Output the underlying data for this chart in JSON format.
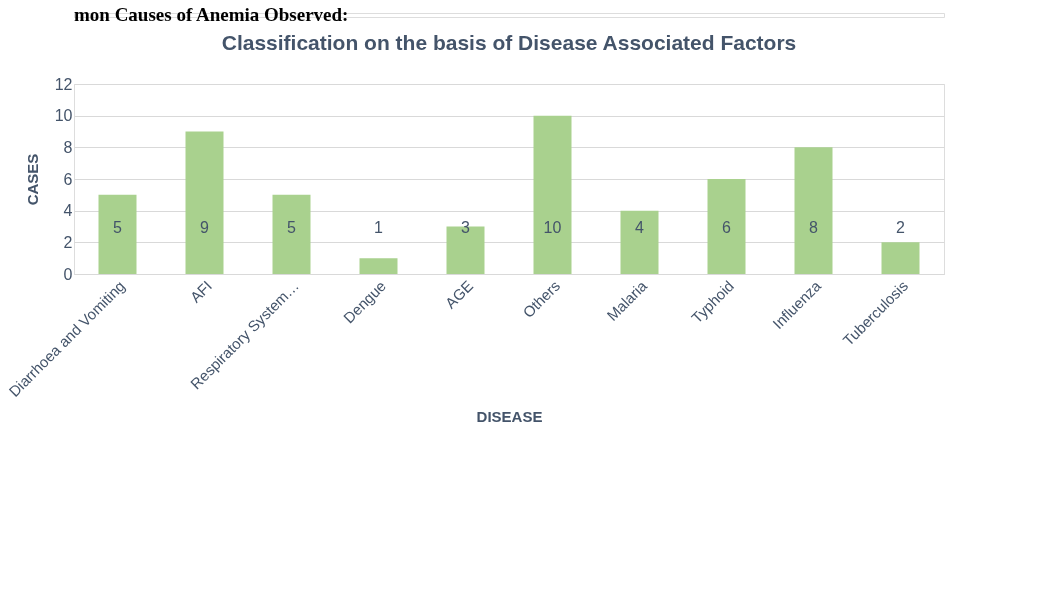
{
  "chart_data": {
    "type": "bar",
    "title": "Classification on the basis of Disease Associated Factors",
    "xlabel": "DISEASE",
    "ylabel": "CASES",
    "categories": [
      "Diarrhoea and Vomiting",
      "AFI",
      "Respiratory System…",
      "Dengue",
      "AGE",
      "Others",
      "Malaria",
      "Typhoid",
      "Influenza",
      "Tuberculosis"
    ],
    "values": [
      5,
      9,
      5,
      1,
      3,
      10,
      4,
      6,
      8,
      2
    ],
    "color": "#a9d18e",
    "ylim": [
      0,
      12
    ],
    "yticks": [
      0,
      2,
      4,
      6,
      8,
      10,
      12
    ],
    "grid": "y",
    "data_labels": true,
    "annotations": [
      "mon Causes of Anemia Observed:"
    ]
  }
}
